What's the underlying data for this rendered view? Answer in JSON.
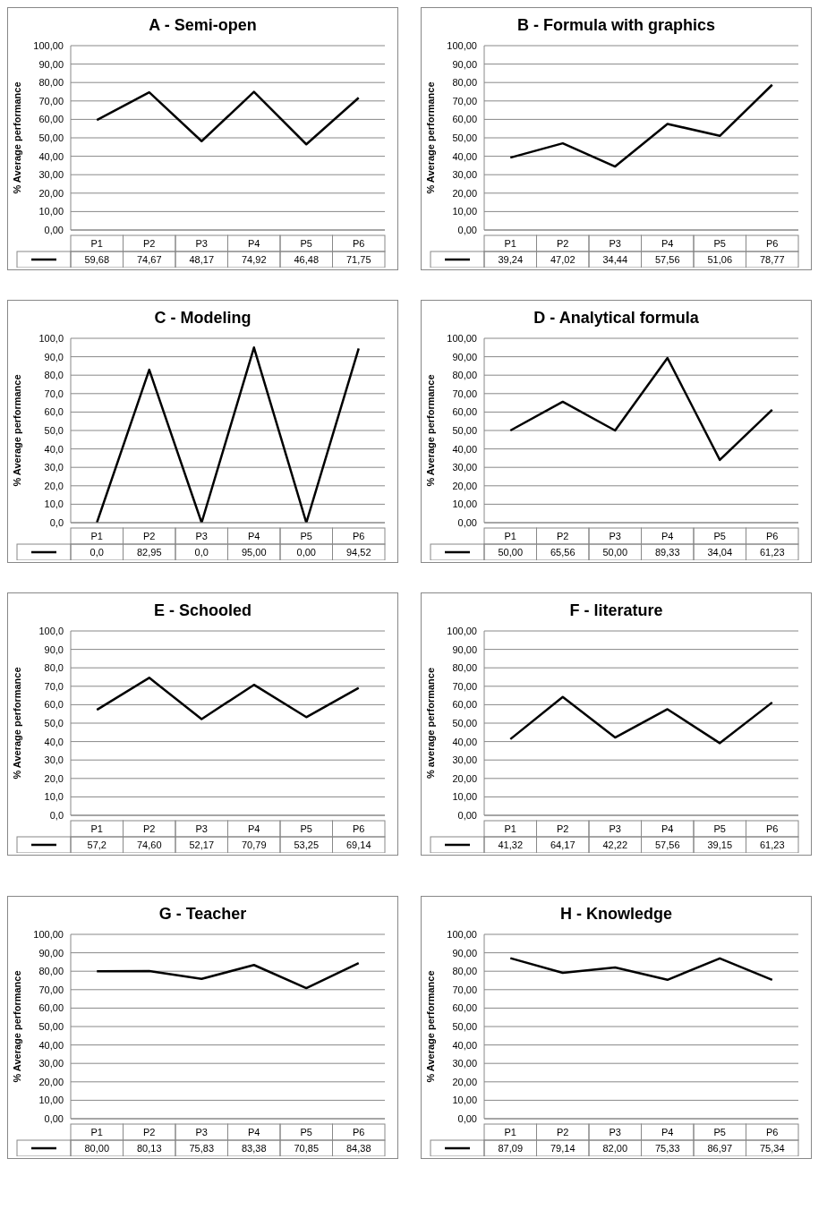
{
  "chart_data": [
    {
      "type": "line",
      "title": "A - Semi-open",
      "ylabel": "% Average performance",
      "categories": [
        "P1",
        "P2",
        "P3",
        "P4",
        "P5",
        "P6"
      ],
      "values": [
        59.68,
        74.67,
        48.17,
        74.92,
        46.48,
        71.75
      ],
      "value_labels": [
        "59,68",
        "74,67",
        "48,17",
        "74,92",
        "46,48",
        "71,75"
      ],
      "color": "#000000",
      "ylim": [
        0,
        100
      ],
      "yticks": [
        {
          "value": 0,
          "label": "0,00"
        },
        {
          "value": 10,
          "label": "10,00"
        },
        {
          "value": 20,
          "label": "20,00"
        },
        {
          "value": 30,
          "label": "30,00"
        },
        {
          "value": 40,
          "label": "40,00"
        },
        {
          "value": 50,
          "label": "50,00"
        },
        {
          "value": 60,
          "label": "60,00"
        },
        {
          "value": 70,
          "label": "70,00"
        },
        {
          "value": 80,
          "label": "80,00"
        },
        {
          "value": 90,
          "label": "90,00"
        },
        {
          "value": 100,
          "label": "100,00"
        }
      ],
      "grid": "y",
      "line_style": "solid",
      "marker": "none"
    },
    {
      "type": "line",
      "title": "B - Formula with graphics",
      "ylabel": "% Average performance",
      "categories": [
        "P1",
        "P2",
        "P3",
        "P4",
        "P5",
        "P6"
      ],
      "values": [
        39.24,
        47.02,
        34.44,
        57.56,
        51.06,
        78.77
      ],
      "value_labels": [
        "39,24",
        "47,02",
        "34,44",
        "57,56",
        "51,06",
        "78,77"
      ],
      "color": "#000000",
      "ylim": [
        0,
        100
      ],
      "yticks": [
        {
          "value": 0,
          "label": "0,00"
        },
        {
          "value": 10,
          "label": "10,00"
        },
        {
          "value": 20,
          "label": "20,00"
        },
        {
          "value": 30,
          "label": "30,00"
        },
        {
          "value": 40,
          "label": "40,00"
        },
        {
          "value": 50,
          "label": "50,00"
        },
        {
          "value": 60,
          "label": "60,00"
        },
        {
          "value": 70,
          "label": "70,00"
        },
        {
          "value": 80,
          "label": "80,00"
        },
        {
          "value": 90,
          "label": "90,00"
        },
        {
          "value": 100,
          "label": "100,00"
        }
      ],
      "grid": "y",
      "line_style": "solid",
      "marker": "none"
    },
    {
      "type": "line",
      "title": "C - Modeling",
      "ylabel": "% Average performance",
      "categories": [
        "P1",
        "P2",
        "P3",
        "P4",
        "P5",
        "P6"
      ],
      "values": [
        0,
        82.95,
        0,
        95,
        0,
        94.52
      ],
      "value_labels": [
        "0,0",
        "82,95",
        "0,0",
        "95,00",
        "0,00",
        "94,52"
      ],
      "color": "#000000",
      "ylim": [
        0,
        100
      ],
      "yticks": [
        {
          "value": 0,
          "label": "0,0"
        },
        {
          "value": 10,
          "label": "10,0"
        },
        {
          "value": 20,
          "label": "20,0"
        },
        {
          "value": 30,
          "label": "30,0"
        },
        {
          "value": 40,
          "label": "40,0"
        },
        {
          "value": 50,
          "label": "50,0"
        },
        {
          "value": 60,
          "label": "60,0"
        },
        {
          "value": 70,
          "label": "70,0"
        },
        {
          "value": 80,
          "label": "80,0"
        },
        {
          "value": 90,
          "label": "90,0"
        },
        {
          "value": 100,
          "label": "100,0"
        }
      ],
      "grid": "y",
      "line_style": "solid",
      "marker": "none"
    },
    {
      "type": "line",
      "title": "D - Analytical formula",
      "ylabel": "% Average performance",
      "categories": [
        "P1",
        "P2",
        "P3",
        "P4",
        "P5",
        "P6"
      ],
      "values": [
        50,
        65.56,
        50,
        89.33,
        34.04,
        61.23
      ],
      "value_labels": [
        "50,00",
        "65,56",
        "50,00",
        "89,33",
        "34,04",
        "61,23"
      ],
      "color": "#000000",
      "ylim": [
        0,
        100
      ],
      "yticks": [
        {
          "value": 0,
          "label": "0,00"
        },
        {
          "value": 10,
          "label": "10,00"
        },
        {
          "value": 20,
          "label": "20,00"
        },
        {
          "value": 30,
          "label": "30,00"
        },
        {
          "value": 40,
          "label": "40,00"
        },
        {
          "value": 50,
          "label": "50,00"
        },
        {
          "value": 60,
          "label": "60,00"
        },
        {
          "value": 70,
          "label": "70,00"
        },
        {
          "value": 80,
          "label": "80,00"
        },
        {
          "value": 90,
          "label": "90,00"
        },
        {
          "value": 100,
          "label": "100,00"
        }
      ],
      "grid": "y",
      "line_style": "solid",
      "marker": "none"
    },
    {
      "type": "line",
      "title": "E - Schooled",
      "ylabel": "% Average performance",
      "categories": [
        "P1",
        "P2",
        "P3",
        "P4",
        "P5",
        "P6"
      ],
      "values": [
        57.2,
        74.6,
        52.17,
        70.79,
        53.25,
        69.14
      ],
      "value_labels": [
        "57,2",
        "74,60",
        "52,17",
        "70,79",
        "53,25",
        "69,14"
      ],
      "color": "#000000",
      "ylim": [
        0,
        100
      ],
      "yticks": [
        {
          "value": 0,
          "label": "0,0"
        },
        {
          "value": 10,
          "label": "10,0"
        },
        {
          "value": 20,
          "label": "20,0"
        },
        {
          "value": 30,
          "label": "30,0"
        },
        {
          "value": 40,
          "label": "40,0"
        },
        {
          "value": 50,
          "label": "50,0"
        },
        {
          "value": 60,
          "label": "60,0"
        },
        {
          "value": 70,
          "label": "70,0"
        },
        {
          "value": 80,
          "label": "80,0"
        },
        {
          "value": 90,
          "label": "90,0"
        },
        {
          "value": 100,
          "label": "100,0"
        }
      ],
      "grid": "y",
      "line_style": "solid",
      "marker": "none"
    },
    {
      "type": "line",
      "title": "F - literature",
      "ylabel": "% average performance",
      "categories": [
        "P1",
        "P2",
        "P3",
        "P4",
        "P5",
        "P6"
      ],
      "values": [
        41.32,
        64.17,
        42.22,
        57.56,
        39.15,
        61.23
      ],
      "value_labels": [
        "41,32",
        "64,17",
        "42,22",
        "57,56",
        "39,15",
        "61,23"
      ],
      "color": "#000000",
      "ylim": [
        0,
        100
      ],
      "yticks": [
        {
          "value": 0,
          "label": "0,00"
        },
        {
          "value": 10,
          "label": "10,00"
        },
        {
          "value": 20,
          "label": "20,00"
        },
        {
          "value": 30,
          "label": "30,00"
        },
        {
          "value": 40,
          "label": "40,00"
        },
        {
          "value": 50,
          "label": "50,00"
        },
        {
          "value": 60,
          "label": "60,00"
        },
        {
          "value": 70,
          "label": "70,00"
        },
        {
          "value": 80,
          "label": "80,00"
        },
        {
          "value": 90,
          "label": "90,00"
        },
        {
          "value": 100,
          "label": "100,00"
        }
      ],
      "grid": "y",
      "line_style": "solid",
      "marker": "none"
    },
    {
      "type": "line",
      "title": "G - Teacher",
      "ylabel": "% Average performance",
      "categories": [
        "P1",
        "P2",
        "P3",
        "P4",
        "P5",
        "P6"
      ],
      "values": [
        80,
        80.13,
        75.83,
        83.38,
        70.85,
        84.38
      ],
      "value_labels": [
        "80,00",
        "80,13",
        "75,83",
        "83,38",
        "70,85",
        "84,38"
      ],
      "color": "#000000",
      "ylim": [
        0,
        100
      ],
      "yticks": [
        {
          "value": 0,
          "label": "0,00"
        },
        {
          "value": 10,
          "label": "10,00"
        },
        {
          "value": 20,
          "label": "20,00"
        },
        {
          "value": 30,
          "label": "30,00"
        },
        {
          "value": 40,
          "label": "40,00"
        },
        {
          "value": 50,
          "label": "50,00"
        },
        {
          "value": 60,
          "label": "60,00"
        },
        {
          "value": 70,
          "label": "70,00"
        },
        {
          "value": 80,
          "label": "80,00"
        },
        {
          "value": 90,
          "label": "90,00"
        },
        {
          "value": 100,
          "label": "100,00"
        }
      ],
      "grid": "y",
      "line_style": "solid",
      "marker": "none"
    },
    {
      "type": "line",
      "title": "H - Knowledge",
      "ylabel": "% Average performance",
      "categories": [
        "P1",
        "P2",
        "P3",
        "P4",
        "P5",
        "P6"
      ],
      "values": [
        87.09,
        79.14,
        82,
        75.33,
        86.97,
        75.34
      ],
      "value_labels": [
        "87,09",
        "79,14",
        "82,00",
        "75,33",
        "86,97",
        "75,34"
      ],
      "color": "#000000",
      "ylim": [
        0,
        100
      ],
      "yticks": [
        {
          "value": 0,
          "label": "0,00"
        },
        {
          "value": 10,
          "label": "10,00"
        },
        {
          "value": 20,
          "label": "20,00"
        },
        {
          "value": 30,
          "label": "30,00"
        },
        {
          "value": 40,
          "label": "40,00"
        },
        {
          "value": 50,
          "label": "50,00"
        },
        {
          "value": 60,
          "label": "60,00"
        },
        {
          "value": 70,
          "label": "70,00"
        },
        {
          "value": 80,
          "label": "80,00"
        },
        {
          "value": 90,
          "label": "90,00"
        },
        {
          "value": 100,
          "label": "100,00"
        }
      ],
      "grid": "y",
      "line_style": "solid",
      "marker": "none"
    }
  ]
}
